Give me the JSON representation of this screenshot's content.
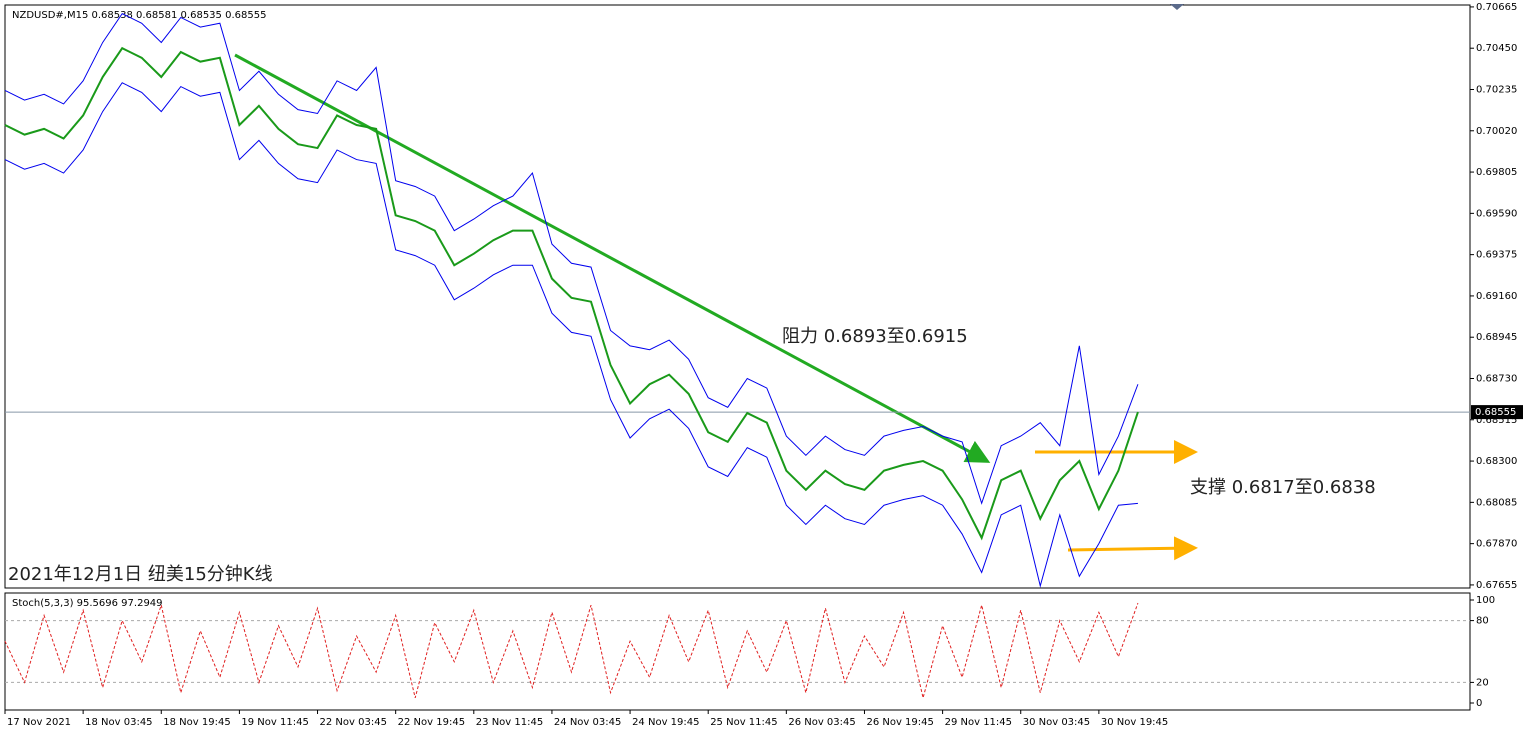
{
  "chart_data": [
    {
      "type": "line",
      "title": "NZDUSD#,M15  0.68538 0.68581 0.68535 0.68555",
      "annotations": [
        "阻力 0.6893至0.6915",
        "支撑 0.6817至0.6838",
        "2021年12月1日 纽美15分钟K线"
      ],
      "current_price": 0.68555,
      "xlim": [
        0,
        60
      ],
      "xticks": [
        {
          "value": 0,
          "label": "17 Nov 2021"
        },
        {
          "value": 4,
          "label": "18 Nov 03:45"
        },
        {
          "value": 8,
          "label": "18 Nov 19:45"
        },
        {
          "value": 12,
          "label": "19 Nov 11:45"
        },
        {
          "value": 16,
          "label": "22 Nov 03:45"
        },
        {
          "value": 20,
          "label": "22 Nov 19:45"
        },
        {
          "value": 24,
          "label": "23 Nov 11:45"
        },
        {
          "value": 28,
          "label": "24 Nov 03:45"
        },
        {
          "value": 32,
          "label": "24 Nov 19:45"
        },
        {
          "value": 36,
          "label": "25 Nov 11:45"
        },
        {
          "value": 40,
          "label": "26 Nov 03:45"
        },
        {
          "value": 44,
          "label": "26 Nov 19:45"
        },
        {
          "value": 48,
          "label": "29 Nov 11:45"
        },
        {
          "value": 52,
          "label": "30 Nov 03:45"
        },
        {
          "value": 56,
          "label": "30 Nov 19:45"
        }
      ],
      "ylim": [
        0.67639,
        0.70675
      ],
      "yticks": [
        0.70665,
        {
          "value": 0.7045,
          "label": "0.70450"
        },
        0.70235,
        {
          "value": 0.7002,
          "label": "0.70020"
        },
        0.69805,
        {
          "value": 0.6959,
          "label": "0.69590"
        },
        0.69375,
        {
          "value": 0.6916,
          "label": "0.69160"
        },
        0.68945,
        {
          "value": 0.6873,
          "label": "0.68730"
        },
        0.68515,
        {
          "value": 0.683,
          "label": "0.68300"
        },
        0.68085,
        {
          "value": 0.6787,
          "label": "0.67870"
        },
        0.67655
      ],
      "series": [
        {
          "name": "close",
          "color": "#1a9a1a",
          "values": [
            0.7005,
            0.7,
            0.7003,
            0.6998,
            0.701,
            0.703,
            0.7045,
            0.704,
            0.703,
            0.7043,
            0.7038,
            0.704,
            0.7005,
            0.7015,
            0.7003,
            0.6995,
            0.6993,
            0.701,
            0.7005,
            0.7003,
            0.6958,
            0.6955,
            0.695,
            0.6932,
            0.6938,
            0.6945,
            0.695,
            0.695,
            0.6925,
            0.6915,
            0.6913,
            0.688,
            0.686,
            0.687,
            0.6875,
            0.6865,
            0.6845,
            0.684,
            0.6855,
            0.685,
            0.6825,
            0.6815,
            0.6825,
            0.6818,
            0.6815,
            0.6825,
            0.6828,
            0.683,
            0.6825,
            0.681,
            0.679,
            0.682,
            0.6825,
            0.68,
            0.682,
            0.683,
            0.6805,
            0.6825,
            0.68555
          ]
        },
        {
          "name": "upper",
          "color": "#0000ee",
          "values": [
            0.7023,
            0.7018,
            0.7021,
            0.7016,
            0.7028,
            0.7048,
            0.7063,
            0.7058,
            0.7048,
            0.7061,
            0.7056,
            0.7058,
            0.7023,
            0.7033,
            0.7021,
            0.7013,
            0.7011,
            0.7028,
            0.7023,
            0.7035,
            0.6976,
            0.6973,
            0.6968,
            0.695,
            0.6956,
            0.6963,
            0.6968,
            0.698,
            0.6943,
            0.6933,
            0.6931,
            0.6898,
            0.689,
            0.6888,
            0.6893,
            0.6883,
            0.6863,
            0.6858,
            0.6873,
            0.6868,
            0.6843,
            0.6833,
            0.6843,
            0.6836,
            0.6833,
            0.6843,
            0.6846,
            0.6848,
            0.6843,
            0.684,
            0.6808,
            0.6838,
            0.6843,
            0.685,
            0.6838,
            0.689,
            0.6823,
            0.6843,
            0.687
          ]
        },
        {
          "name": "lower",
          "color": "#0000ee",
          "values": [
            0.6987,
            0.6982,
            0.6985,
            0.698,
            0.6992,
            0.7012,
            0.7027,
            0.7022,
            0.7012,
            0.7025,
            0.702,
            0.7022,
            0.6987,
            0.6997,
            0.6985,
            0.6977,
            0.6975,
            0.6992,
            0.6987,
            0.6985,
            0.694,
            0.6937,
            0.6932,
            0.6914,
            0.692,
            0.6927,
            0.6932,
            0.6932,
            0.6907,
            0.6897,
            0.6895,
            0.6862,
            0.6842,
            0.6852,
            0.6857,
            0.6847,
            0.6827,
            0.6822,
            0.6837,
            0.6832,
            0.6807,
            0.6797,
            0.6807,
            0.68,
            0.6797,
            0.6807,
            0.681,
            0.6812,
            0.6807,
            0.6792,
            0.6772,
            0.6802,
            0.6807,
            0.6765,
            0.6802,
            0.677,
            0.6787,
            0.6807,
            0.6808
          ]
        }
      ]
    },
    {
      "type": "stoch",
      "title": "Stoch(5,3,3) 95.5696 97.2949",
      "xlim": [
        0,
        60
      ],
      "ylim": [
        -6.8,
        106.8
      ],
      "yticks": [
        0,
        20,
        80,
        100
      ],
      "series": [
        {
          "name": "stoch",
          "color": "#e02020",
          "values": [
            60,
            20,
            85,
            30,
            90,
            15,
            80,
            40,
            95,
            10,
            70,
            25,
            88,
            20,
            75,
            35,
            92,
            12,
            65,
            30,
            85,
            5,
            78,
            40,
            90,
            20,
            70,
            15,
            88,
            30,
            95,
            10,
            60,
            25,
            85,
            40,
            90,
            15,
            70,
            30,
            80,
            10,
            92,
            20,
            65,
            35,
            88,
            5,
            75,
            25,
            95,
            15,
            90,
            10,
            80,
            40,
            88,
            45,
            97
          ]
        }
      ]
    }
  ]
}
